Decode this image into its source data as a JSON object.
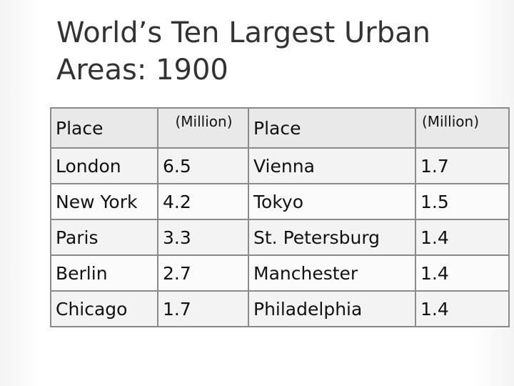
{
  "title": "World’s Ten Largest Urban Areas: 1900",
  "table": {
    "headers": [
      "Place",
      "(Million)",
      "Place",
      "(Million)"
    ],
    "rows": [
      [
        "London",
        "6.5",
        "Vienna",
        "1.7"
      ],
      [
        "New York",
        "4.2",
        "Tokyo",
        "1.5"
      ],
      [
        "Paris",
        "3.3",
        "St. Petersburg",
        "1.4"
      ],
      [
        "Berlin",
        "2.7",
        "Manchester",
        "1.4"
      ],
      [
        "Chicago",
        "1.7",
        "Philadelphia",
        "1.4"
      ]
    ]
  }
}
